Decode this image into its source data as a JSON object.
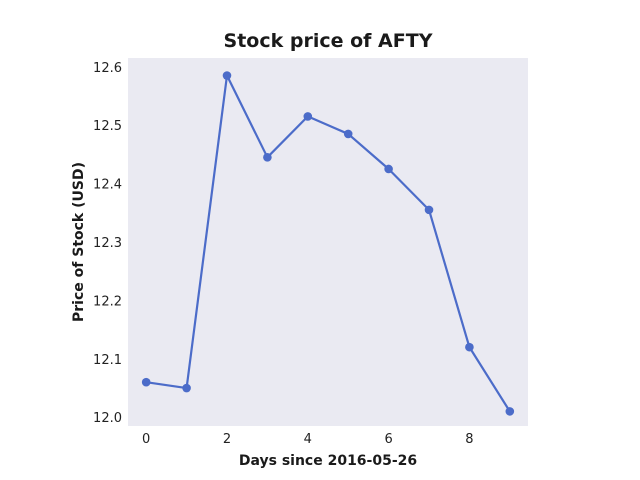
{
  "chart_data": {
    "type": "line",
    "title": "Stock price of AFTY",
    "xlabel": "Days since 2016-05-26",
    "ylabel": "Price of Stock (USD)",
    "x": [
      0,
      1,
      2,
      3,
      4,
      5,
      6,
      7,
      8,
      9
    ],
    "series": [
      {
        "values": [
          12.06,
          12.05,
          12.585,
          12.445,
          12.515,
          12.485,
          12.425,
          12.355,
          12.12,
          12.01
        ]
      }
    ],
    "xlim": [
      -0.45,
      9.45
    ],
    "ylim": [
      11.985,
      12.615
    ],
    "xticks": [
      "0",
      "2",
      "4",
      "6",
      "8"
    ],
    "yticks": [
      "12.0",
      "12.1",
      "12.2",
      "12.3",
      "12.4",
      "12.5",
      "12.6"
    ],
    "grid": false,
    "colors": {
      "line": "#4C6CC9",
      "plot_background": "#EAEAF2"
    }
  }
}
